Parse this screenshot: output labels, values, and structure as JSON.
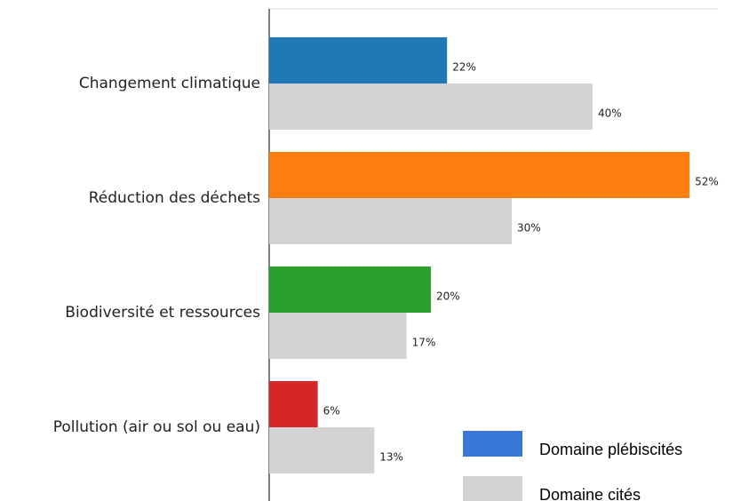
{
  "chart_data": {
    "type": "barh",
    "categories": [
      "Changement climatique",
      "Réduction des déchets",
      "Biodiversité et ressources",
      "Pollution (air ou sol ou eau)"
    ],
    "series": [
      {
        "name": "Domaine plébiscités",
        "color": "#3a78d8",
        "colors": [
          "#1f77b4",
          "#ff7f0e",
          "#2ca02c",
          "#d62728"
        ],
        "values": [
          22,
          52,
          20,
          6
        ],
        "value_labels": [
          "22%",
          "52%",
          "20%",
          "6%"
        ]
      },
      {
        "name": "Domaine cités",
        "color": "#d3d3d3",
        "values": [
          40,
          30,
          17,
          13
        ],
        "value_labels": [
          "40%",
          "30%",
          "17%",
          "13%"
        ]
      }
    ],
    "xlim": [
      0,
      55.5
    ],
    "legend": "lower right"
  }
}
